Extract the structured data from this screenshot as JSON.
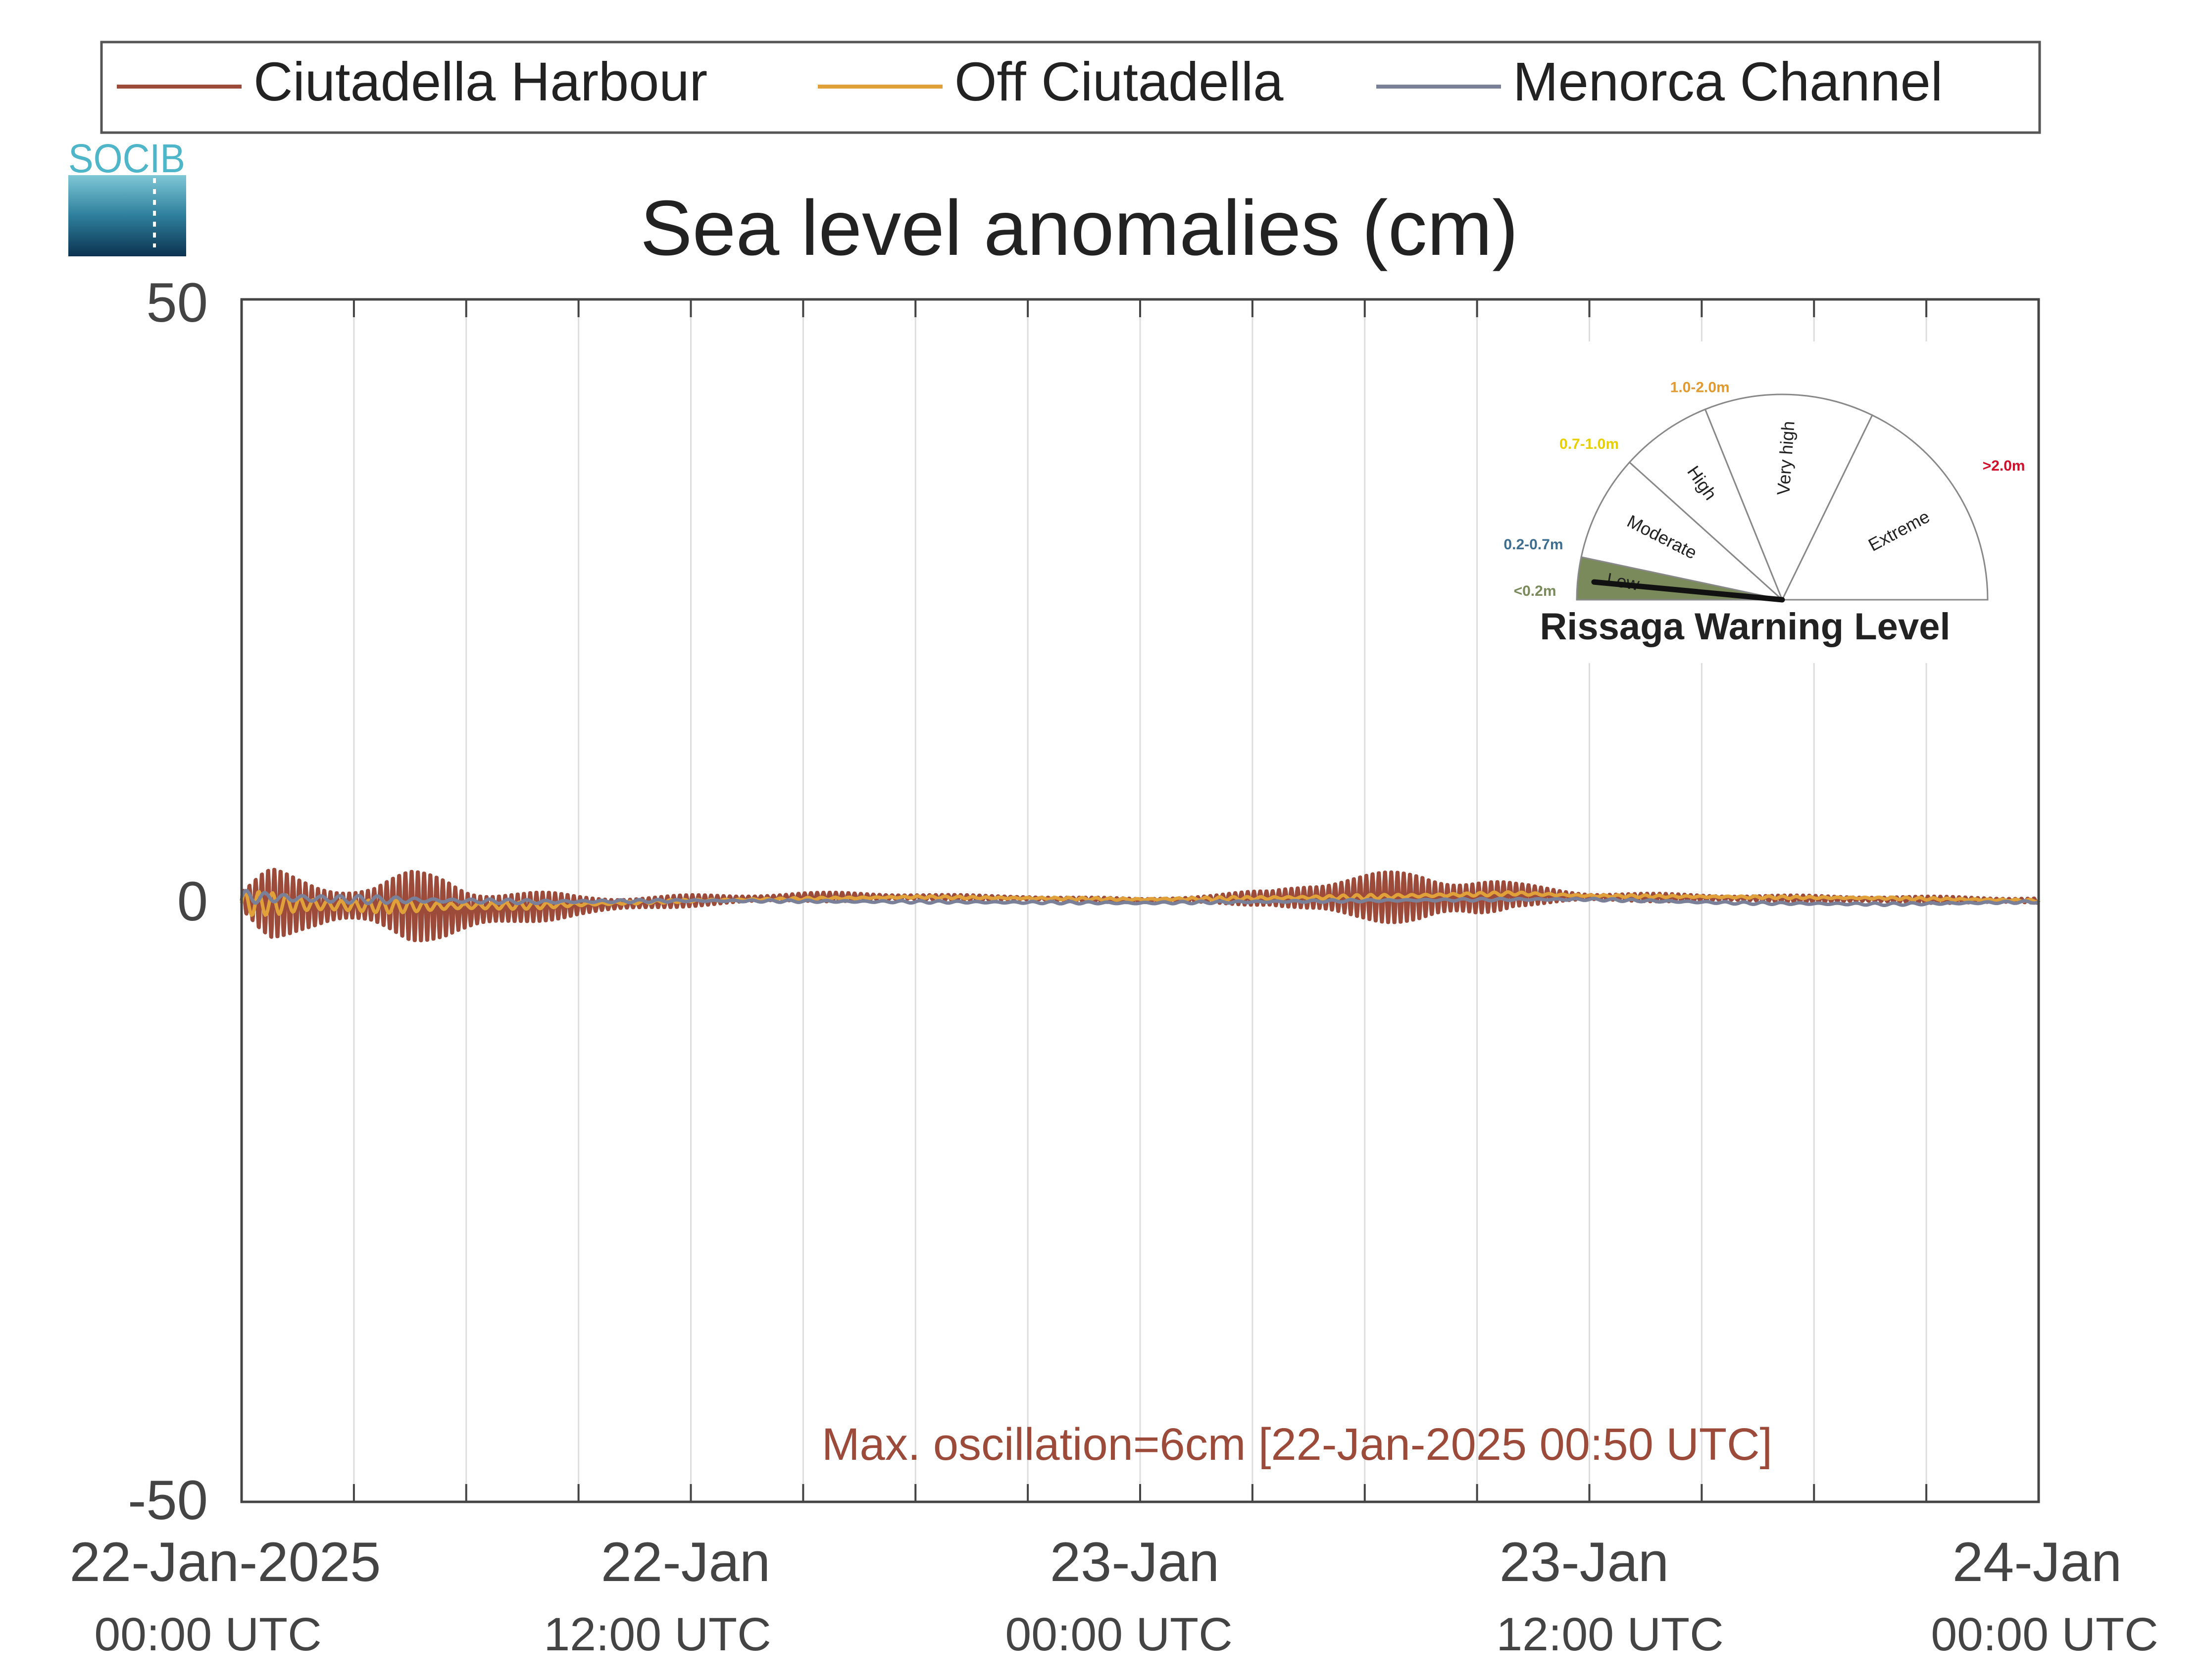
{
  "logo": {
    "text": "SOCIB"
  },
  "legend": {
    "position": "top",
    "items": [
      {
        "label": "Ciutadella Harbour",
        "color": "#9c4a3a"
      },
      {
        "label": "Off Ciutadella",
        "color": "#e0a03a"
      },
      {
        "label": "Menorca Channel",
        "color": "#7a8098"
      }
    ]
  },
  "chart_data": {
    "type": "line",
    "title": "Sea level anomalies (cm)",
    "xlabel": "",
    "ylabel": "",
    "ylim": [
      -50,
      50
    ],
    "yticks": [
      {
        "value": 50,
        "label": "50"
      },
      {
        "value": 0,
        "label": "0"
      },
      {
        "value": -50,
        "label": "-50"
      }
    ],
    "xlim_hours": [
      0,
      48
    ],
    "xgrid_every_hours": 3,
    "xticks": [
      {
        "hour": 0,
        "date": "22-Jan-2025",
        "time": "00:00 UTC"
      },
      {
        "hour": 12,
        "date": "22-Jan",
        "time": "12:00 UTC"
      },
      {
        "hour": 24,
        "date": "23-Jan",
        "time": "00:00 UTC"
      },
      {
        "hour": 36,
        "date": "23-Jan",
        "time": "12:00 UTC"
      },
      {
        "hour": 48,
        "date": "24-Jan",
        "time": "00:00 UTC"
      }
    ],
    "grid": true,
    "annotation": {
      "text": "Max. oscillation=6cm [22-Jan-2025 00:50 UTC]",
      "color": "#9c4a3a"
    },
    "series": [
      {
        "name": "Ciutadella Harbour",
        "color": "#9c4a3a",
        "oscillation_envelope_cm": [
          [
            0,
            1.0
          ],
          [
            0.5,
            2.5
          ],
          [
            0.8,
            3.0
          ],
          [
            1.5,
            2.5
          ],
          [
            2.5,
            2.2
          ],
          [
            3.5,
            2.0
          ],
          [
            4.5,
            3.0
          ],
          [
            5.5,
            3.0
          ],
          [
            6.5,
            2.2
          ],
          [
            7.5,
            1.5
          ],
          [
            9,
            0.9
          ],
          [
            11,
            0.6
          ],
          [
            13,
            0.4
          ],
          [
            16,
            0.4
          ],
          [
            20,
            0.2
          ],
          [
            24,
            0.2
          ],
          [
            26,
            0.4
          ],
          [
            27.5,
            0.7
          ],
          [
            28.5,
            1.8
          ],
          [
            30,
            2.0
          ],
          [
            31.5,
            2.5
          ],
          [
            33,
            2.0
          ],
          [
            34,
            1.0
          ],
          [
            36,
            0.4
          ],
          [
            40,
            0.3
          ],
          [
            44,
            0.3
          ],
          [
            48,
            0.3
          ]
        ],
        "mean_level_cm": [
          [
            0,
            0
          ],
          [
            2,
            -0.5
          ],
          [
            4,
            -0.3
          ],
          [
            6,
            -0.8
          ],
          [
            8,
            -0.5
          ],
          [
            10,
            -0.3
          ],
          [
            12,
            0
          ],
          [
            15,
            0.3
          ],
          [
            18,
            0.3
          ],
          [
            21,
            0.2
          ],
          [
            24,
            0
          ],
          [
            27,
            0.2
          ],
          [
            30,
            0.3
          ],
          [
            33,
            0.2
          ],
          [
            34,
            0.5
          ],
          [
            36,
            0.3
          ],
          [
            40,
            0.2
          ],
          [
            44,
            0.1
          ],
          [
            48,
            0
          ]
        ]
      },
      {
        "name": "Off Ciutadella",
        "color": "#e0a03a",
        "oscillation_envelope_cm": [
          [
            0,
            1.0
          ],
          [
            1,
            1.0
          ],
          [
            3,
            0.6
          ],
          [
            6,
            0.4
          ],
          [
            9,
            0.2
          ],
          [
            12,
            0.1
          ],
          [
            24,
            0.1
          ],
          [
            30,
            0.2
          ],
          [
            36,
            0.1
          ],
          [
            48,
            0.1
          ]
        ],
        "mean_level_cm": [
          [
            0,
            -0.2
          ],
          [
            4,
            -0.5
          ],
          [
            8,
            -0.4
          ],
          [
            12,
            0
          ],
          [
            18,
            0.3
          ],
          [
            24,
            0.1
          ],
          [
            30,
            0.3
          ],
          [
            34,
            0.6
          ],
          [
            36,
            0.4
          ],
          [
            40,
            0.3
          ],
          [
            44,
            0.2
          ],
          [
            48,
            0
          ]
        ]
      },
      {
        "name": "Menorca Channel",
        "color": "#7a8098",
        "oscillation_envelope_cm": [
          [
            0,
            0.6
          ],
          [
            2,
            0.4
          ],
          [
            6,
            0.2
          ],
          [
            12,
            0.1
          ],
          [
            48,
            0.1
          ]
        ],
        "mean_level_cm": [
          [
            0,
            0.3
          ],
          [
            3,
            0.1
          ],
          [
            8,
            -0.1
          ],
          [
            12,
            0
          ],
          [
            18,
            -0.1
          ],
          [
            24,
            -0.2
          ],
          [
            30,
            0
          ],
          [
            34,
            0.1
          ],
          [
            36,
            0.1
          ],
          [
            40,
            -0.2
          ],
          [
            44,
            -0.3
          ],
          [
            48,
            -0.1
          ]
        ]
      }
    ]
  },
  "gauge": {
    "title": "Rissaga Warning Level",
    "active_level": "Low",
    "needle_value": 0.09,
    "levels": [
      {
        "label": "Low",
        "range": "<0.2m",
        "range_color": "#7a8a5a",
        "fill": "#7a8a5a"
      },
      {
        "label": "Moderate",
        "range": "0.2-0.7m",
        "range_color": "#3d6e8f",
        "fill": "#ffffff"
      },
      {
        "label": "High",
        "range": "0.7-1.0m",
        "range_color": "#e8d000",
        "fill": "#ffffff"
      },
      {
        "label": "Very high",
        "range": "1.0-2.0m",
        "range_color": "#e09a30",
        "fill": "#ffffff"
      },
      {
        "label": "Extreme",
        "range": ">2.0m",
        "range_color": "#d0102a",
        "fill": "#ffffff"
      }
    ]
  }
}
